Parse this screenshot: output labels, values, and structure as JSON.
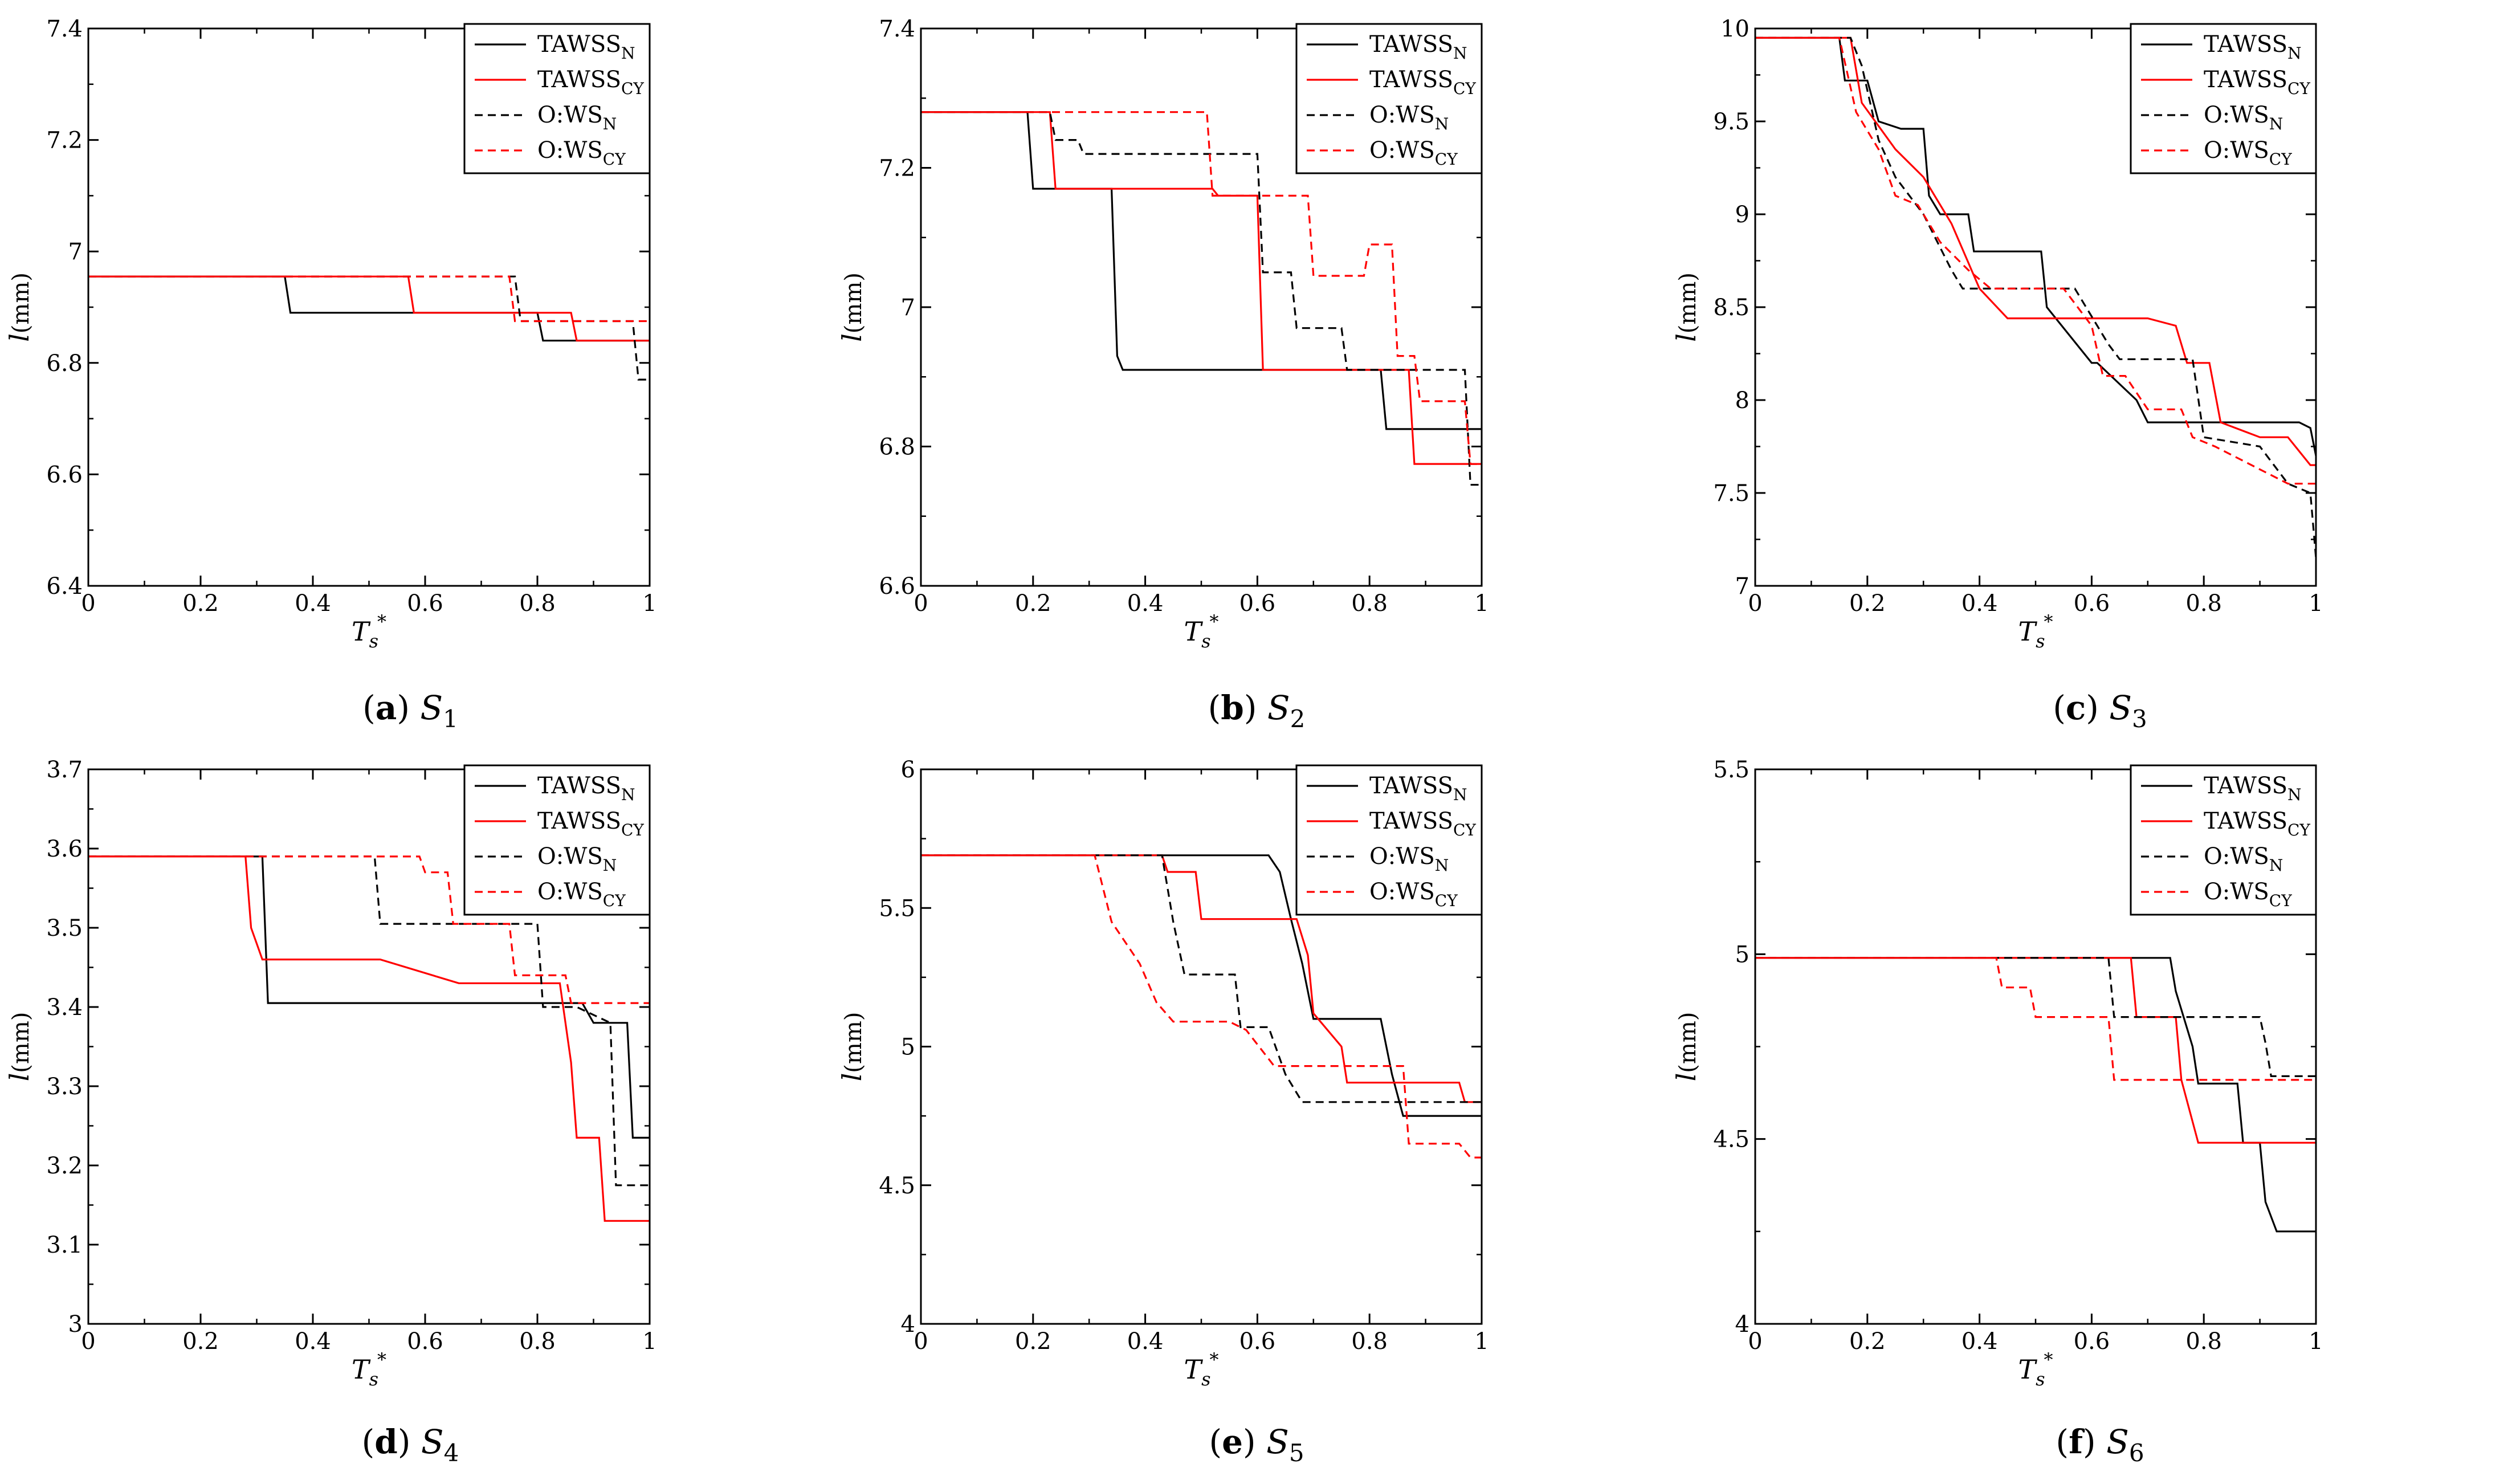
{
  "figure": {
    "line_colors": {
      "TAWSS_N": "#000000",
      "TAWSS_CY": "#ff0000",
      "O_WS_N": "#000000",
      "O_WS_CY": "#ff0000"
    },
    "alt_line_colors_b": {
      "O_WS_N": "#f0b400",
      "O_WS_CY": "#00a000"
    },
    "alt_line_colors_c": {
      "TAWSS_N": "#00a000"
    }
  },
  "chart_data": [
    {
      "type": "line",
      "caption": {
        "tag": "(a)",
        "sym": "S",
        "sub": "1"
      },
      "xlabel": {
        "main": "T",
        "sub": "s",
        "sup": "*"
      },
      "ylabel": {
        "main": "l",
        "unit": "(mm)"
      },
      "xlim": [
        0,
        1
      ],
      "ylim": [
        6.4,
        7.4
      ],
      "xticks": [
        "0",
        "0.2",
        "0.4",
        "0.6",
        "0.8",
        "1"
      ],
      "yticks": [
        "6.4",
        "6.6",
        "6.8",
        "7",
        "7.2",
        "7.4"
      ],
      "legend": [
        {
          "base": "TAWSS",
          "sub": "N"
        },
        {
          "base": "TAWSS",
          "sub": "CY"
        },
        {
          "base": "O:WS",
          "sub": "N"
        },
        {
          "base": "O:WS",
          "sub": "CY"
        }
      ],
      "series": [
        {
          "name": "TAWSS_N",
          "color": "#000000",
          "dash": false,
          "x": [
            0,
            0.35,
            0.36,
            0.8,
            0.81,
            1
          ],
          "y": [
            6.955,
            6.955,
            6.89,
            6.89,
            6.84,
            6.84
          ]
        },
        {
          "name": "TAWSS_CY",
          "color": "#ff0000",
          "dash": false,
          "x": [
            0,
            0.57,
            0.58,
            0.86,
            0.87,
            1
          ],
          "y": [
            6.955,
            6.955,
            6.89,
            6.89,
            6.84,
            6.84
          ]
        },
        {
          "name": "O:WS_N",
          "color": "#000000",
          "dash": true,
          "x": [
            0,
            0.76,
            0.77,
            0.97,
            0.98,
            1
          ],
          "y": [
            6.955,
            6.955,
            6.875,
            6.875,
            6.77,
            6.77
          ]
        },
        {
          "name": "O:WS_CY",
          "color": "#ff0000",
          "dash": true,
          "x": [
            0,
            0.75,
            0.76,
            1
          ],
          "y": [
            6.955,
            6.955,
            6.875,
            6.875
          ]
        }
      ]
    },
    {
      "type": "line",
      "caption": {
        "tag": "(b)",
        "sym": "S",
        "sub": "2"
      },
      "xlabel": {
        "main": "T",
        "sub": "s",
        "sup": "*"
      },
      "ylabel": {
        "main": "l",
        "unit": "(mm)"
      },
      "xlim": [
        0,
        1
      ],
      "ylim": [
        6.6,
        7.4
      ],
      "xticks": [
        "0",
        "0.2",
        "0.4",
        "0.6",
        "0.8",
        "1"
      ],
      "yticks": [
        "6.6",
        "6.8",
        "7",
        "7.2",
        "7.4"
      ],
      "legend": [
        {
          "base": "TAWSS",
          "sub": "N"
        },
        {
          "base": "TAWSS",
          "sub": "CY"
        },
        {
          "base": "O:WS",
          "sub": "N"
        },
        {
          "base": "O:WS",
          "sub": "CY"
        }
      ],
      "series": [
        {
          "name": "TAWSS_N",
          "color": "#000000",
          "dash": false,
          "x": [
            0,
            0.19,
            0.2,
            0.34,
            0.35,
            0.36,
            0.82,
            0.83,
            1
          ],
          "y": [
            7.28,
            7.28,
            7.17,
            7.17,
            6.93,
            6.91,
            6.91,
            6.825,
            6.825
          ]
        },
        {
          "name": "TAWSS_CY",
          "color": "#ff0000",
          "dash": false,
          "x": [
            0,
            0.23,
            0.24,
            0.52,
            0.53,
            0.6,
            0.61,
            0.87,
            0.88,
            1
          ],
          "y": [
            7.28,
            7.28,
            7.17,
            7.17,
            7.16,
            7.16,
            6.91,
            6.91,
            6.775,
            6.775
          ]
        },
        {
          "name": "O:WS_N",
          "color": "#000000",
          "dash": true,
          "x": [
            0,
            0.23,
            0.24,
            0.28,
            0.29,
            0.6,
            0.61,
            0.66,
            0.67,
            0.75,
            0.76,
            0.97,
            0.98,
            1
          ],
          "y": [
            7.28,
            7.28,
            7.24,
            7.24,
            7.22,
            7.22,
            7.05,
            7.05,
            6.97,
            6.97,
            6.91,
            6.91,
            6.745,
            6.745
          ]
        },
        {
          "name": "O:WS_CY",
          "color": "#ff0000",
          "dash": true,
          "x": [
            0,
            0.51,
            0.52,
            0.69,
            0.7,
            0.79,
            0.8,
            0.84,
            0.85,
            0.88,
            0.89,
            0.97,
            0.98,
            1
          ],
          "y": [
            7.28,
            7.28,
            7.16,
            7.16,
            7.045,
            7.045,
            7.09,
            7.09,
            6.93,
            6.93,
            6.865,
            6.865,
            6.775,
            6.775
          ]
        }
      ]
    },
    {
      "type": "line",
      "caption": {
        "tag": "(c)",
        "sym": "S",
        "sub": "3"
      },
      "xlabel": {
        "main": "T",
        "sub": "s",
        "sup": "*"
      },
      "ylabel": {
        "main": "l",
        "unit": "(mm)"
      },
      "xlim": [
        0,
        1
      ],
      "ylim": [
        7,
        10
      ],
      "xticks": [
        "0",
        "0.2",
        "0.4",
        "0.6",
        "0.8",
        "1"
      ],
      "yticks": [
        "7",
        "7.5",
        "8",
        "8.5",
        "9",
        "9.5",
        "10"
      ],
      "legend": [
        {
          "base": "TAWSS",
          "sub": "N"
        },
        {
          "base": "TAWSS",
          "sub": "CY"
        },
        {
          "base": "O:WS",
          "sub": "N"
        },
        {
          "base": "O:WS",
          "sub": "CY"
        }
      ],
      "series": [
        {
          "name": "TAWSS_N",
          "color": "#000000",
          "dash": false,
          "x": [
            0,
            0.15,
            0.16,
            0.2,
            0.22,
            0.26,
            0.27,
            0.3,
            0.31,
            0.33,
            0.34,
            0.38,
            0.39,
            0.43,
            0.44,
            0.51,
            0.52,
            0.6,
            0.61,
            0.68,
            0.7,
            0.8,
            0.97,
            0.99,
            1
          ],
          "y": [
            9.95,
            9.95,
            9.72,
            9.72,
            9.5,
            9.46,
            9.46,
            9.46,
            9.1,
            9.0,
            9.0,
            9.0,
            8.8,
            8.8,
            8.8,
            8.8,
            8.5,
            8.2,
            8.2,
            8.0,
            7.88,
            7.88,
            7.88,
            7.85,
            7.7
          ]
        },
        {
          "name": "TAWSS_CY",
          "color": "#ff0000",
          "dash": false,
          "x": [
            0,
            0.17,
            0.19,
            0.25,
            0.3,
            0.35,
            0.4,
            0.45,
            0.7,
            0.75,
            0.77,
            0.81,
            0.83,
            0.9,
            0.95,
            0.99,
            1
          ],
          "y": [
            9.95,
            9.95,
            9.6,
            9.35,
            9.2,
            8.95,
            8.6,
            8.44,
            8.44,
            8.4,
            8.2,
            8.2,
            7.88,
            7.8,
            7.8,
            7.65,
            7.65
          ]
        },
        {
          "name": "O:WS_N",
          "color": "#000000",
          "dash": true,
          "x": [
            0,
            0.17,
            0.19,
            0.22,
            0.25,
            0.3,
            0.35,
            0.37,
            0.57,
            0.63,
            0.65,
            0.78,
            0.8,
            0.9,
            0.95,
            0.99,
            1
          ],
          "y": [
            9.95,
            9.95,
            9.8,
            9.4,
            9.2,
            9.0,
            8.7,
            8.6,
            8.6,
            8.3,
            8.22,
            8.22,
            7.8,
            7.75,
            7.55,
            7.5,
            7.15
          ]
        },
        {
          "name": "O:WS_CY",
          "color": "#ff0000",
          "dash": true,
          "x": [
            0,
            0.15,
            0.18,
            0.22,
            0.25,
            0.29,
            0.33,
            0.38,
            0.42,
            0.55,
            0.6,
            0.62,
            0.66,
            0.7,
            0.76,
            0.78,
            0.82,
            0.95,
            0.97,
            1
          ],
          "y": [
            9.95,
            9.95,
            9.55,
            9.35,
            9.1,
            9.05,
            8.85,
            8.7,
            8.6,
            8.6,
            8.4,
            8.13,
            8.13,
            7.95,
            7.95,
            7.8,
            7.75,
            7.55,
            7.55,
            7.55
          ]
        }
      ]
    },
    {
      "type": "line",
      "caption": {
        "tag": "(d)",
        "sym": "S",
        "sub": "4"
      },
      "xlabel": {
        "main": "T",
        "sub": "s",
        "sup": "*"
      },
      "ylabel": {
        "main": "l",
        "unit": "(mm)"
      },
      "xlim": [
        0,
        1
      ],
      "ylim": [
        3,
        3.7
      ],
      "xticks": [
        "0",
        "0.2",
        "0.4",
        "0.6",
        "0.8",
        "1"
      ],
      "yticks": [
        "3",
        "3.1",
        "3.2",
        "3.3",
        "3.4",
        "3.5",
        "3.6",
        "3.7"
      ],
      "legend": [
        {
          "base": "TAWSS",
          "sub": "N"
        },
        {
          "base": "TAWSS",
          "sub": "CY"
        },
        {
          "base": "O:WS",
          "sub": "N"
        },
        {
          "base": "O:WS",
          "sub": "CY"
        }
      ],
      "series": [
        {
          "name": "TAWSS_N",
          "color": "#000000",
          "dash": false,
          "x": [
            0,
            0.31,
            0.32,
            0.88,
            0.9,
            0.96,
            0.97,
            1
          ],
          "y": [
            3.59,
            3.59,
            3.405,
            3.405,
            3.38,
            3.38,
            3.235,
            3.235
          ]
        },
        {
          "name": "TAWSS_CY",
          "color": "#ff0000",
          "dash": false,
          "x": [
            0,
            0.28,
            0.29,
            0.31,
            0.52,
            0.66,
            0.8,
            0.84,
            0.86,
            0.87,
            0.91,
            0.92,
            1
          ],
          "y": [
            3.59,
            3.59,
            3.5,
            3.46,
            3.46,
            3.43,
            3.43,
            3.43,
            3.33,
            3.235,
            3.235,
            3.13,
            3.13
          ]
        },
        {
          "name": "O:WS_N",
          "color": "#000000",
          "dash": true,
          "x": [
            0,
            0.51,
            0.52,
            0.8,
            0.81,
            0.87,
            0.93,
            0.94,
            1
          ],
          "y": [
            3.59,
            3.59,
            3.505,
            3.505,
            3.4,
            3.4,
            3.38,
            3.175,
            3.175
          ]
        },
        {
          "name": "O:WS_CY",
          "color": "#ff0000",
          "dash": true,
          "x": [
            0,
            0.59,
            0.6,
            0.64,
            0.65,
            0.75,
            0.76,
            0.85,
            0.86,
            1
          ],
          "y": [
            3.59,
            3.59,
            3.57,
            3.57,
            3.505,
            3.505,
            3.44,
            3.44,
            3.405,
            3.405
          ]
        }
      ]
    },
    {
      "type": "line",
      "caption": {
        "tag": "(e)",
        "sym": "S",
        "sub": "5"
      },
      "xlabel": {
        "main": "T",
        "sub": "s",
        "sup": "*"
      },
      "ylabel": {
        "main": "l",
        "unit": "(mm)"
      },
      "xlim": [
        0,
        1
      ],
      "ylim": [
        4,
        6
      ],
      "xticks": [
        "0",
        "0.2",
        "0.4",
        "0.6",
        "0.8",
        "1"
      ],
      "yticks": [
        "4",
        "4.5",
        "5",
        "5.5",
        "6"
      ],
      "legend": [
        {
          "base": "TAWSS",
          "sub": "N"
        },
        {
          "base": "TAWSS",
          "sub": "CY"
        },
        {
          "base": "O:WS",
          "sub": "N"
        },
        {
          "base": "O:WS",
          "sub": "CY"
        }
      ],
      "series": [
        {
          "name": "TAWSS_N",
          "color": "#000000",
          "dash": false,
          "x": [
            0,
            0.62,
            0.64,
            0.66,
            0.68,
            0.7,
            0.82,
            0.84,
            0.86,
            1
          ],
          "y": [
            5.69,
            5.69,
            5.63,
            5.46,
            5.3,
            5.1,
            5.1,
            4.9,
            4.75,
            4.75
          ]
        },
        {
          "name": "TAWSS_CY",
          "color": "#ff0000",
          "dash": false,
          "x": [
            0,
            0.43,
            0.44,
            0.49,
            0.5,
            0.67,
            0.69,
            0.7,
            0.75,
            0.76,
            0.96,
            0.97,
            1
          ],
          "y": [
            5.69,
            5.69,
            5.63,
            5.63,
            5.46,
            5.46,
            5.33,
            5.12,
            5.0,
            4.87,
            4.87,
            4.8,
            4.8
          ]
        },
        {
          "name": "O:WS_N",
          "color": "#000000",
          "dash": true,
          "x": [
            0,
            0.43,
            0.45,
            0.47,
            0.56,
            0.57,
            0.62,
            0.65,
            0.68,
            1
          ],
          "y": [
            5.69,
            5.69,
            5.45,
            5.26,
            5.26,
            5.07,
            5.07,
            4.9,
            4.8,
            4.8
          ]
        },
        {
          "name": "O:WS_CY",
          "color": "#ff0000",
          "dash": true,
          "x": [
            0,
            0.31,
            0.34,
            0.39,
            0.42,
            0.45,
            0.55,
            0.58,
            0.63,
            0.86,
            0.87,
            0.96,
            0.98,
            1
          ],
          "y": [
            5.69,
            5.69,
            5.45,
            5.3,
            5.16,
            5.09,
            5.09,
            5.06,
            4.93,
            4.93,
            4.65,
            4.65,
            4.6,
            4.6
          ]
        }
      ]
    },
    {
      "type": "line",
      "caption": {
        "tag": "(f)",
        "sym": "S",
        "sub": "6"
      },
      "xlabel": {
        "main": "T",
        "sub": "s",
        "sup": "*"
      },
      "ylabel": {
        "main": "l",
        "unit": "(mm)"
      },
      "xlim": [
        0,
        1
      ],
      "ylim": [
        4,
        5.5
      ],
      "xticks": [
        "0",
        "0.2",
        "0.4",
        "0.6",
        "0.8",
        "1"
      ],
      "yticks": [
        "4",
        "4.5",
        "5",
        "5.5"
      ],
      "legend": [
        {
          "base": "TAWSS",
          "sub": "N"
        },
        {
          "base": "TAWSS",
          "sub": "CY"
        },
        {
          "base": "O:WS",
          "sub": "N"
        },
        {
          "base": "O:WS",
          "sub": "CY"
        }
      ],
      "series": [
        {
          "name": "TAWSS_N",
          "color": "#000000",
          "dash": false,
          "x": [
            0,
            0.74,
            0.75,
            0.78,
            0.79,
            0.86,
            0.87,
            0.9,
            0.91,
            0.93,
            1
          ],
          "y": [
            4.99,
            4.99,
            4.9,
            4.75,
            4.65,
            4.65,
            4.49,
            4.49,
            4.33,
            4.25,
            4.25
          ]
        },
        {
          "name": "TAWSS_CY",
          "color": "#ff0000",
          "dash": false,
          "x": [
            0,
            0.67,
            0.68,
            0.75,
            0.76,
            0.79,
            0.8,
            1
          ],
          "y": [
            4.99,
            4.99,
            4.83,
            4.83,
            4.66,
            4.49,
            4.49,
            4.49
          ]
        },
        {
          "name": "O:WS_N",
          "color": "#000000",
          "dash": true,
          "x": [
            0,
            0.63,
            0.64,
            0.9,
            0.91,
            0.92,
            1
          ],
          "y": [
            4.99,
            4.99,
            4.83,
            4.83,
            4.76,
            4.67,
            4.67
          ]
        },
        {
          "name": "O:WS_CY",
          "color": "#ff0000",
          "dash": true,
          "x": [
            0,
            0.43,
            0.44,
            0.49,
            0.5,
            0.63,
            0.64,
            1
          ],
          "y": [
            4.99,
            4.99,
            4.91,
            4.91,
            4.83,
            4.83,
            4.66,
            4.66
          ]
        }
      ]
    }
  ]
}
